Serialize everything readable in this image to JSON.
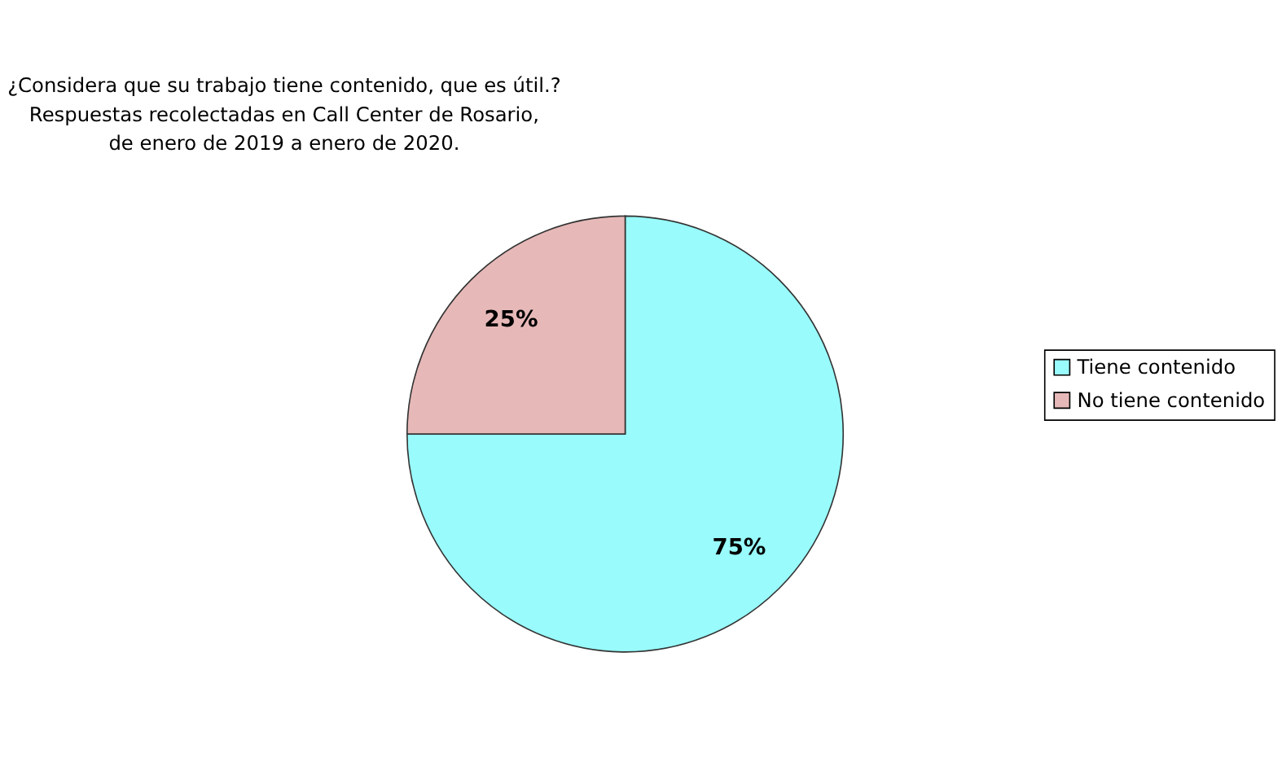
{
  "chart_data": {
    "type": "pie",
    "title": [
      "¿Considera que su trabajo tiene contenido, que es útil.?",
      "Respuestas  recolectadas en Call Center de Rosario,",
      "de enero de 2019 a enero de 2020."
    ],
    "categories": [
      "Tiene contenido",
      "No tiene contenido"
    ],
    "values": [
      75,
      25
    ],
    "colors": [
      "#99fbfb",
      "#e6b9b8"
    ],
    "value_labels": [
      "75%",
      "25%"
    ],
    "legend": "right"
  }
}
